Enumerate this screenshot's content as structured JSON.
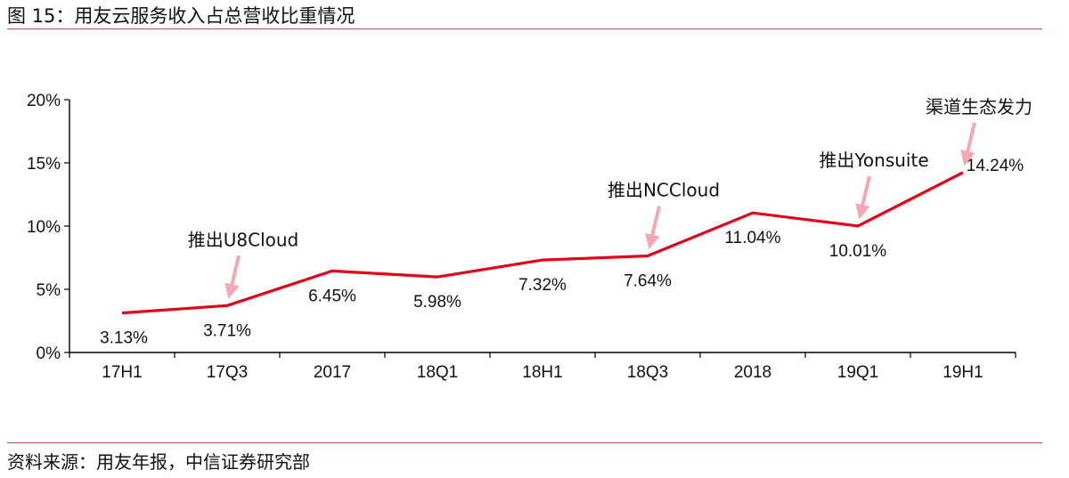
{
  "header": {
    "title": "图 15：用友云服务收入占总营收比重情况"
  },
  "footer": {
    "source": "资料来源：用友年报，中信证券研究部"
  },
  "colors": {
    "series": "#e3001b",
    "axis": "#000000",
    "rule": "#c0504d",
    "arrow": "#f4a7b4"
  },
  "chart_data": {
    "type": "line",
    "categories": [
      "17H1",
      "17Q3",
      "2017",
      "18Q1",
      "18H1",
      "18Q3",
      "2018",
      "19Q1",
      "19H1"
    ],
    "series": [
      {
        "values": [
          3.13,
          3.71,
          6.45,
          5.98,
          7.32,
          7.64,
          11.04,
          10.01,
          14.24
        ]
      }
    ],
    "data_labels": [
      "3.13%",
      "3.71%",
      "6.45%",
      "5.98%",
      "7.32%",
      "7.64%",
      "11.04%",
      "10.01%",
      "14.24%"
    ],
    "y_ticks": [
      {
        "value": 0,
        "label": "0%"
      },
      {
        "value": 5,
        "label": "5%"
      },
      {
        "value": 10,
        "label": "10%"
      },
      {
        "value": 15,
        "label": "15%"
      },
      {
        "value": 20,
        "label": "20%"
      }
    ],
    "ylim": [
      0,
      20
    ],
    "grid": false,
    "annotations": [
      {
        "category_index": 1,
        "text": "推出U8Cloud"
      },
      {
        "category_index": 5,
        "text": "推出NCCloud"
      },
      {
        "category_index": 7,
        "text": "推出Yonsuite"
      },
      {
        "category_index": 8,
        "text": "渠道生态发力"
      }
    ]
  }
}
